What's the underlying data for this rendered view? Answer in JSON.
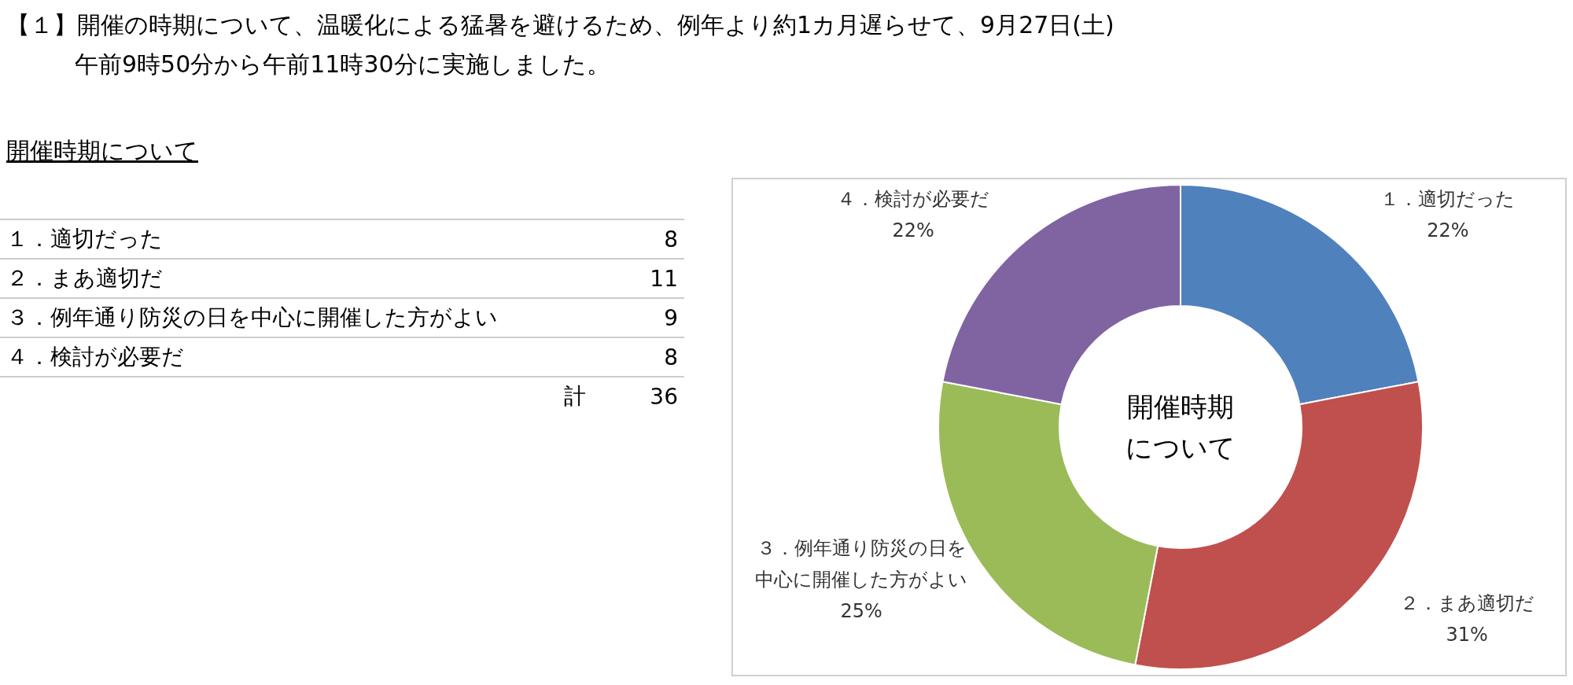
{
  "chart_data": [
    {
      "type": "other",
      "title": "【１】開催の時期について、温暖化による猛暑を避けるため、例年より約1カ月遅らせて、9月27日(土)",
      "subtitle": "午前9時50分から午前11時30分に実施しました。",
      "annotations": [
        "開催時期について",
        "計",
        "36"
      ],
      "categories": [
        "１．適切だった",
        "２．まあ適切だ",
        "３．例年通り防災の日を中心に開催した方がよい",
        "４．検討が必要だ"
      ],
      "values": [
        8,
        11,
        9,
        8
      ],
      "data_labels": true
    },
    {
      "type": "donut",
      "title": "開催時期について",
      "legend": false,
      "categories": [
        "１．適切だった",
        "２．まあ適切だ",
        "３．例年通り防災の日を中心に開催した方がよい",
        "４．検討が必要だ"
      ],
      "values": [
        22,
        31,
        25,
        22
      ],
      "value_labels": [
        "22%",
        "31%",
        "25%",
        "22%"
      ],
      "colors": [
        "#4f81bd",
        "#c0504d",
        "#9bbb59",
        "#8064a2"
      ]
    }
  ]
}
